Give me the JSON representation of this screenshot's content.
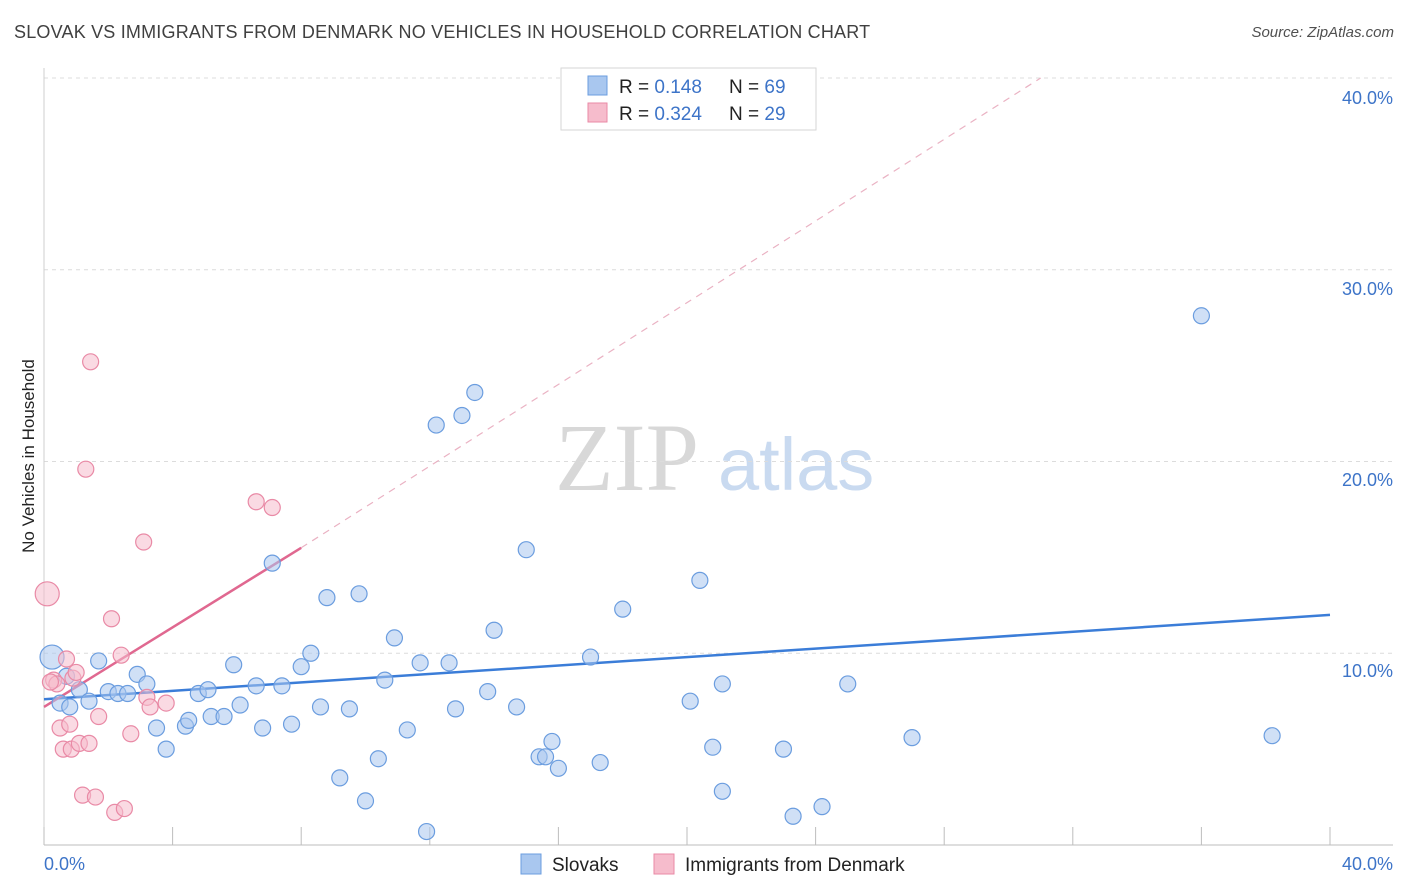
{
  "header": {
    "title": "SLOVAK VS IMMIGRANTS FROM DENMARK NO VEHICLES IN HOUSEHOLD CORRELATION CHART",
    "source": "Source: ZipAtlas.com"
  },
  "watermark": {
    "zip": "ZIP",
    "atlas": "atlas"
  },
  "colors": {
    "slovaks_fill": "#a9c7ef",
    "slovaks_stroke": "#6b9ddf",
    "slovaks_line": "#3b7dd8",
    "denmark_fill": "#f6bccc",
    "denmark_stroke": "#e98aa6",
    "denmark_line": "#e06890",
    "tick_label": "#3d74c8",
    "grid": "#dcdcdc"
  },
  "legend_top": {
    "rows": [
      {
        "r_label": "R = ",
        "r_value": "0.148",
        "n_label": "N = ",
        "n_value": "69"
      },
      {
        "r_label": "R = ",
        "r_value": "0.324",
        "n_label": "N = ",
        "n_value": "29"
      }
    ]
  },
  "chart_data": {
    "type": "scatter",
    "title": "SLOVAK VS IMMIGRANTS FROM DENMARK NO VEHICLES IN HOUSEHOLD CORRELATION CHART",
    "xlabel": "",
    "ylabel": "No Vehicles in Household",
    "xlim": [
      0,
      40
    ],
    "ylim": [
      0,
      40
    ],
    "x_tick_labels": [
      "0.0%",
      "40.0%"
    ],
    "y_ticks": [
      10,
      20,
      30,
      40
    ],
    "y_tick_labels": [
      "10.0%",
      "20.0%",
      "30.0%",
      "40.0%"
    ],
    "grid": true,
    "legend_position": "bottom-center",
    "series": [
      {
        "name": "Slovaks",
        "R": 0.148,
        "N": 69,
        "trend": {
          "x": [
            0.0,
            40.0
          ],
          "y": [
            7.6,
            12.0
          ]
        },
        "points": [
          [
            0.25,
            9.8
          ],
          [
            0.5,
            7.4
          ],
          [
            0.8,
            7.2
          ],
          [
            1.1,
            8.1
          ],
          [
            1.4,
            7.5
          ],
          [
            1.7,
            9.6
          ],
          [
            2.0,
            8.0
          ],
          [
            2.3,
            7.9
          ],
          [
            2.6,
            7.9
          ],
          [
            2.9,
            8.9
          ],
          [
            3.2,
            8.4
          ],
          [
            3.5,
            6.1
          ],
          [
            3.8,
            5.0
          ],
          [
            4.4,
            6.2
          ],
          [
            4.5,
            6.5
          ],
          [
            4.8,
            7.9
          ],
          [
            5.1,
            8.1
          ],
          [
            5.2,
            6.7
          ],
          [
            5.6,
            6.7
          ],
          [
            5.9,
            9.4
          ],
          [
            6.1,
            7.3
          ],
          [
            6.6,
            8.3
          ],
          [
            6.8,
            6.1
          ],
          [
            7.1,
            14.7
          ],
          [
            7.4,
            8.3
          ],
          [
            7.7,
            6.3
          ],
          [
            8.0,
            9.3
          ],
          [
            8.3,
            10.0
          ],
          [
            8.6,
            7.2
          ],
          [
            8.8,
            12.9
          ],
          [
            9.2,
            3.5
          ],
          [
            9.5,
            7.1
          ],
          [
            9.8,
            13.1
          ],
          [
            10.0,
            2.3
          ],
          [
            10.4,
            4.5
          ],
          [
            10.6,
            8.6
          ],
          [
            10.9,
            10.8
          ],
          [
            11.3,
            6.0
          ],
          [
            11.7,
            9.5
          ],
          [
            11.9,
            0.7
          ],
          [
            12.2,
            21.9
          ],
          [
            12.6,
            9.5
          ],
          [
            12.8,
            7.1
          ],
          [
            13.0,
            22.4
          ],
          [
            13.4,
            23.6
          ],
          [
            13.8,
            8.0
          ],
          [
            14.0,
            11.2
          ],
          [
            14.7,
            7.2
          ],
          [
            15.0,
            15.4
          ],
          [
            15.4,
            4.6
          ],
          [
            15.6,
            4.6
          ],
          [
            15.8,
            5.4
          ],
          [
            16.0,
            4.0
          ],
          [
            17.0,
            9.8
          ],
          [
            17.3,
            4.3
          ],
          [
            18.0,
            12.3
          ],
          [
            20.1,
            7.5
          ],
          [
            20.4,
            13.8
          ],
          [
            20.8,
            5.1
          ],
          [
            21.1,
            8.4
          ],
          [
            21.1,
            2.8
          ],
          [
            23.0,
            5.0
          ],
          [
            23.3,
            1.5
          ],
          [
            24.2,
            2.0
          ],
          [
            25.0,
            8.4
          ],
          [
            27.0,
            5.6
          ],
          [
            36.0,
            27.6
          ],
          [
            38.2,
            5.7
          ],
          [
            0.7,
            8.8
          ]
        ]
      },
      {
        "name": "Immigrants from Denmark",
        "R": 0.324,
        "N": 29,
        "trend": {
          "x": [
            0.0,
            8.0
          ],
          "y": [
            7.2,
            15.5
          ]
        },
        "trend_extension": {
          "x": [
            8.0,
            31.0
          ],
          "y": [
            15.5,
            40.0
          ]
        },
        "points": [
          [
            0.1,
            13.1
          ],
          [
            0.3,
            8.6
          ],
          [
            0.4,
            8.4
          ],
          [
            0.5,
            6.1
          ],
          [
            0.6,
            5.0
          ],
          [
            0.7,
            9.7
          ],
          [
            0.8,
            6.3
          ],
          [
            0.85,
            5.0
          ],
          [
            0.9,
            8.7
          ],
          [
            1.0,
            9.0
          ],
          [
            1.1,
            5.3
          ],
          [
            1.2,
            2.6
          ],
          [
            1.3,
            19.6
          ],
          [
            1.4,
            5.3
          ],
          [
            1.45,
            25.2
          ],
          [
            1.6,
            2.5
          ],
          [
            1.7,
            6.7
          ],
          [
            2.1,
            11.8
          ],
          [
            2.2,
            1.7
          ],
          [
            2.4,
            9.9
          ],
          [
            2.5,
            1.9
          ],
          [
            2.7,
            5.8
          ],
          [
            3.1,
            15.8
          ],
          [
            3.2,
            7.7
          ],
          [
            3.3,
            7.2
          ],
          [
            3.8,
            7.4
          ],
          [
            6.6,
            17.9
          ],
          [
            7.1,
            17.6
          ],
          [
            0.2,
            8.5
          ]
        ]
      }
    ]
  },
  "legend_bottom": {
    "items": [
      "Slovaks",
      "Immigrants from Denmark"
    ]
  }
}
